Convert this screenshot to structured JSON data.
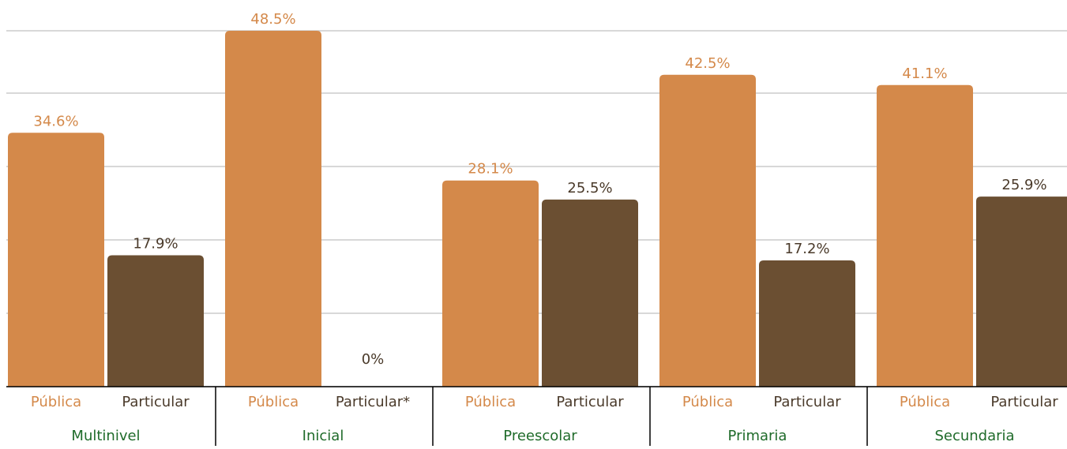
{
  "chart_data": {
    "type": "bar",
    "categories": [
      "Multinivel",
      "Inicial",
      "Preescolar",
      "Primaria",
      "Secundaria"
    ],
    "series": [
      {
        "color": "#d4894a",
        "labels": [
          "Pública",
          "Pública",
          "Pública",
          "Pública",
          "Pública"
        ],
        "values": [
          34.6,
          48.5,
          28.1,
          42.5,
          41.1
        ],
        "value_labels": [
          "34.6%",
          "48.5%",
          "28.1%",
          "42.5%",
          "41.1%"
        ]
      },
      {
        "color": "#6b4f32",
        "labels": [
          "Particular",
          "Particular*",
          "Particular",
          "Particular",
          "Particular"
        ],
        "values": [
          17.9,
          0,
          25.5,
          17.2,
          25.9
        ],
        "value_labels": [
          "17.9%",
          "0%",
          "25.5%",
          "17.2%",
          "25.9%"
        ]
      }
    ],
    "ylim": [
      0,
      48.5
    ],
    "yticks": [
      0,
      10,
      20,
      30,
      40
    ],
    "grid": true
  }
}
